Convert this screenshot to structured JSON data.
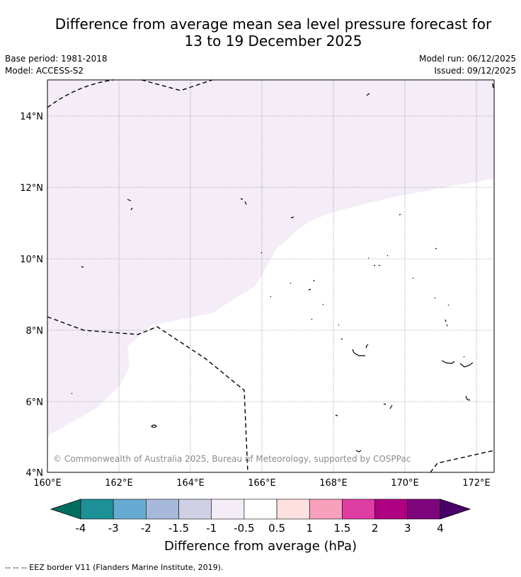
{
  "title_line1": "Difference from average mean sea level pressure forecast for",
  "title_line2": "13 to 19 December 2025",
  "base_period": "Base period: 1981-2018",
  "model": "Model: ACCESS-S2",
  "model_run": "Model run: 06/12/2025",
  "issued": "Issued: 09/12/2025",
  "copyright": "© Commonwealth of Australia 2025, Bureau of Meteorology, supported by COSPPac",
  "lat_labels": [
    "14°N",
    "12°N",
    "10°N",
    "8°N",
    "6°N",
    "4°N"
  ],
  "lon_labels": [
    "160°E",
    "162°E",
    "164°E",
    "166°E",
    "168°E",
    "170°E",
    "172°E"
  ],
  "colorbar": {
    "title": "Difference from average (hPa)",
    "tick_labels": [
      "-4",
      "-3",
      "-2",
      "-1.5",
      "-1",
      "-0.5",
      "0.5",
      "1",
      "1.5",
      "2",
      "3",
      "4"
    ],
    "colors": {
      "below_min": "#006e5f",
      "bins": [
        "#1b9096",
        "#67abd3",
        "#a6b9da",
        "#cfd0e6",
        "#f4edf7",
        "#ffffff",
        "#fee0e0",
        "#f8a0bc",
        "#de3da3",
        "#af0081",
        "#7e047c"
      ],
      "above_max": "#4a006a"
    }
  },
  "legend_footer": "--  --  -- EEZ border V11 (Flanders Marine Institute, 2019)."
}
